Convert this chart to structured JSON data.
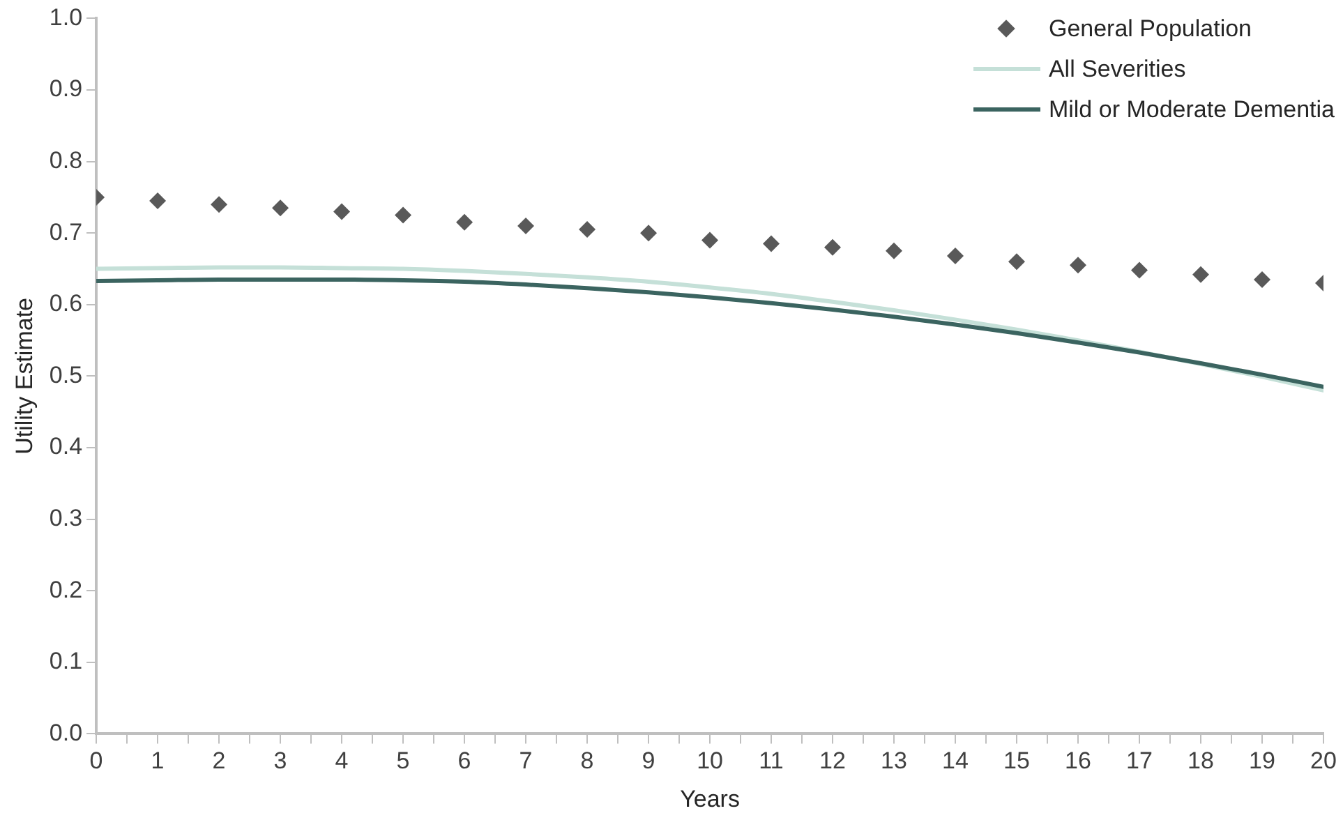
{
  "chart_data": {
    "type": "line",
    "xlabel": "Years",
    "ylabel": "Utility Estimate",
    "x": [
      0,
      1,
      2,
      3,
      4,
      5,
      6,
      7,
      8,
      9,
      10,
      11,
      12,
      13,
      14,
      15,
      16,
      17,
      18,
      19,
      20
    ],
    "xlim": [
      0,
      20
    ],
    "xticks": [
      0,
      {
        "value": 0.5,
        "label": null
      },
      1,
      {
        "value": 1.5,
        "label": null
      },
      2,
      {
        "value": 2.5,
        "label": null
      },
      3,
      {
        "value": 3.5,
        "label": null
      },
      4,
      {
        "value": 4.5,
        "label": null
      },
      5,
      {
        "value": 5.5,
        "label": null
      },
      6,
      {
        "value": 6.5,
        "label": null
      },
      7,
      {
        "value": 7.5,
        "label": null
      },
      8,
      {
        "value": 8.5,
        "label": null
      },
      9,
      {
        "value": 9.5,
        "label": null
      },
      10,
      {
        "value": 10.5,
        "label": null
      },
      11,
      {
        "value": 11.5,
        "label": null
      },
      12,
      {
        "value": 12.5,
        "label": null
      },
      13,
      {
        "value": 13.5,
        "label": null
      },
      14,
      {
        "value": 14.5,
        "label": null
      },
      15,
      {
        "value": 15.5,
        "label": null
      },
      16,
      {
        "value": 16.5,
        "label": null
      },
      17,
      {
        "value": 17.5,
        "label": null
      },
      18,
      {
        "value": 18.5,
        "label": null
      },
      19,
      {
        "value": 19.5,
        "label": null
      },
      20
    ],
    "ylim": [
      0,
      1
    ],
    "yticks": [
      {
        "value": 0,
        "label": "0.0"
      },
      {
        "value": 0.1,
        "label": "0.1"
      },
      {
        "value": 0.2,
        "label": "0.2"
      },
      {
        "value": 0.3,
        "label": "0.3"
      },
      {
        "value": 0.4,
        "label": "0.4"
      },
      {
        "value": 0.5,
        "label": "0.5"
      },
      {
        "value": 0.6,
        "label": "0.6"
      },
      {
        "value": 0.7,
        "label": "0.7"
      },
      {
        "value": 0.8,
        "label": "0.8"
      },
      {
        "value": 0.9,
        "label": "0.9"
      },
      {
        "value": 1,
        "label": "1.0"
      }
    ],
    "grid": false,
    "legend": "top right",
    "series": [
      {
        "name": "General Population",
        "type": "scatter",
        "marker": "diamond",
        "color": "#595959",
        "values": [
          0.75,
          0.745,
          0.74,
          0.735,
          0.73,
          0.725,
          0.715,
          0.71,
          0.705,
          0.7,
          0.69,
          0.685,
          0.68,
          0.675,
          0.668,
          0.66,
          0.655,
          0.648,
          0.642,
          0.635,
          0.63
        ]
      },
      {
        "name": "All Severities",
        "type": "line",
        "marker": "none",
        "color": "#c5e0d8",
        "values": [
          0.65,
          0.651,
          0.652,
          0.652,
          0.651,
          0.65,
          0.647,
          0.643,
          0.638,
          0.632,
          0.624,
          0.615,
          0.604,
          0.592,
          0.579,
          0.565,
          0.55,
          0.534,
          0.517,
          0.499,
          0.48
        ]
      },
      {
        "name": "Mild or Moderate Dementia",
        "type": "line",
        "marker": "none",
        "color": "#3b6460",
        "values": [
          0.633,
          0.634,
          0.635,
          0.635,
          0.635,
          0.634,
          0.632,
          0.628,
          0.623,
          0.617,
          0.61,
          0.602,
          0.593,
          0.583,
          0.572,
          0.56,
          0.547,
          0.533,
          0.518,
          0.502,
          0.485
        ]
      }
    ]
  }
}
